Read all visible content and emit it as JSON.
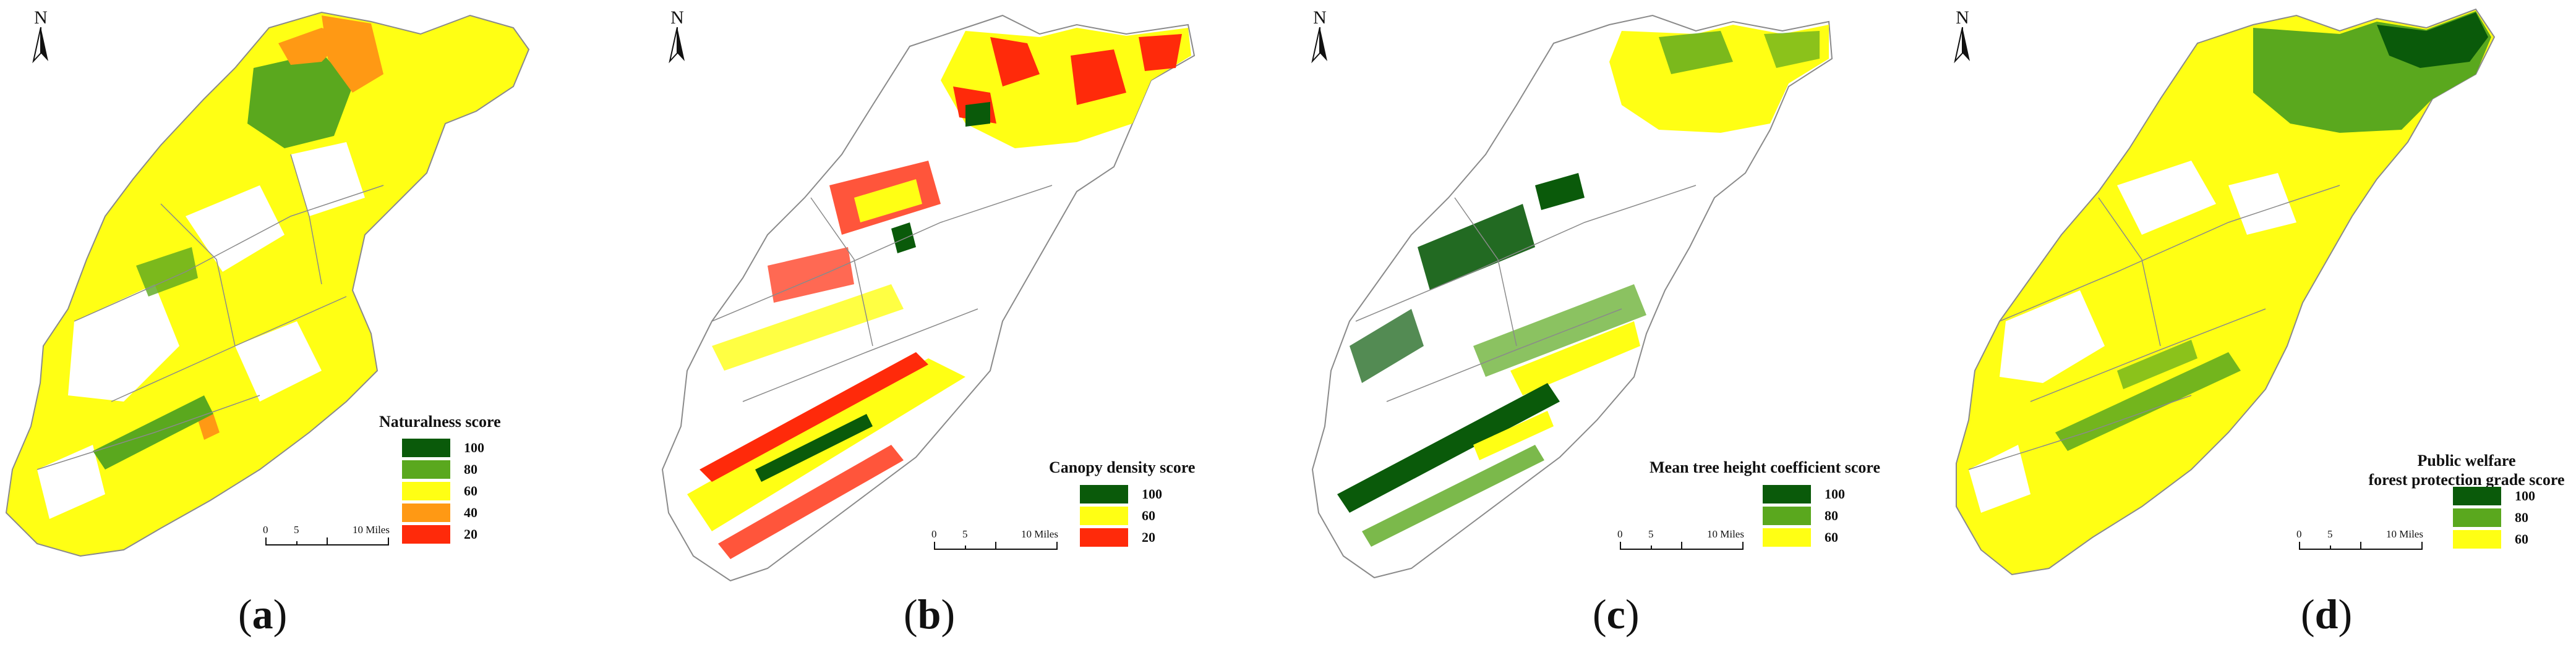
{
  "north_label": "N",
  "scale": {
    "ticks": [
      "0",
      "5",
      "10 Miles"
    ]
  },
  "colors": {
    "dark_green": "#0a5a0a",
    "green": "#5aa81e",
    "yellow": "#ffff14",
    "orange": "#ff9914",
    "red": "#ff2a0a",
    "boundary": "#8a8a8a"
  },
  "panels": [
    {
      "caption_open": "(",
      "caption_letter": "a",
      "caption_close": ")",
      "legend_title": "Naturalness score",
      "legend": [
        {
          "label": "100",
          "color": "#0a5a0a"
        },
        {
          "label": "80",
          "color": "#5aa81e"
        },
        {
          "label": "60",
          "color": "#ffff14"
        },
        {
          "label": "40",
          "color": "#ff9914"
        },
        {
          "label": "20",
          "color": "#ff2a0a"
        }
      ]
    },
    {
      "caption_open": "(",
      "caption_letter": "b",
      "caption_close": ")",
      "legend_title": "Canopy density score",
      "legend": [
        {
          "label": "100",
          "color": "#0a5a0a"
        },
        {
          "label": "60",
          "color": "#ffff14"
        },
        {
          "label": "20",
          "color": "#ff2a0a"
        }
      ]
    },
    {
      "caption_open": "(",
      "caption_letter": "c",
      "caption_close": ")",
      "legend_title": "Mean tree height coefficient score",
      "legend": [
        {
          "label": "100",
          "color": "#0a5a0a"
        },
        {
          "label": "80",
          "color": "#5aa81e"
        },
        {
          "label": "60",
          "color": "#ffff14"
        }
      ]
    },
    {
      "caption_open": "(",
      "caption_letter": "d",
      "caption_close": ")",
      "legend_title_lines": [
        "Public welfare",
        "forest protection grade score"
      ],
      "legend": [
        {
          "label": "100",
          "color": "#0a5a0a"
        },
        {
          "label": "80",
          "color": "#5aa81e"
        },
        {
          "label": "60",
          "color": "#ffff14"
        }
      ]
    }
  ]
}
